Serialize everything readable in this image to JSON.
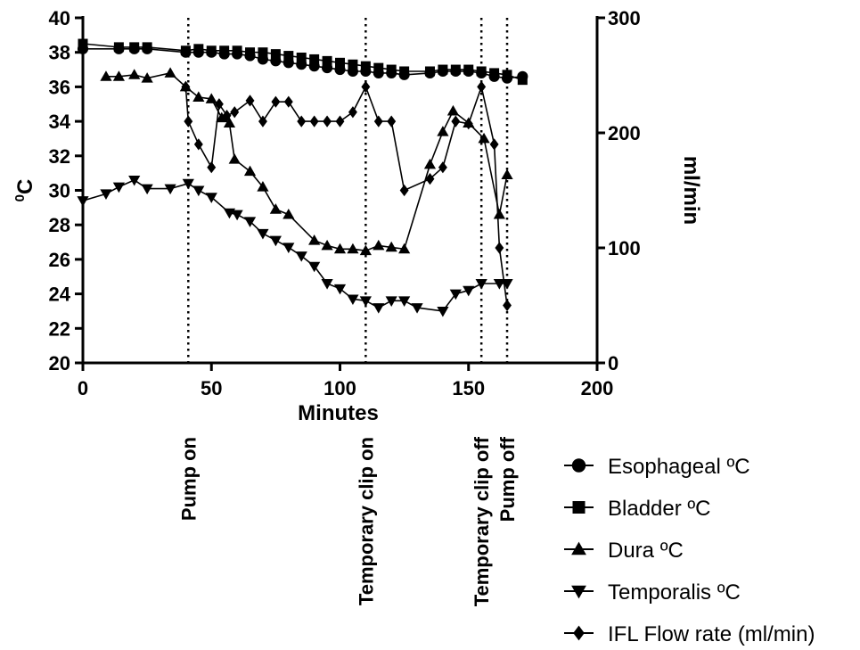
{
  "chart_data": {
    "type": "line",
    "xlabel": "Minutes",
    "ylabel_left": "0C",
    "ylabel_right": "ml/min",
    "xlim": [
      0,
      200
    ],
    "ylim_left": [
      20,
      40
    ],
    "ylim_right": [
      0,
      300
    ],
    "x_ticks": [
      0,
      50,
      100,
      150,
      200
    ],
    "y_ticks_left": [
      20,
      22,
      24,
      26,
      28,
      30,
      32,
      34,
      36,
      38,
      40
    ],
    "y_ticks_right": [
      0,
      100,
      200,
      300
    ],
    "grid": false,
    "legend_position": "bottom-right",
    "events": [
      {
        "x": 41,
        "label": "Pump on"
      },
      {
        "x": 110,
        "label": "Temporary clip on"
      },
      {
        "x": 155,
        "label": "Temporary clip off"
      },
      {
        "x": 165,
        "label": "Pump off"
      }
    ],
    "series": [
      {
        "name": "Esophageal ºC",
        "marker": "circle",
        "axis": "left",
        "x": [
          0,
          14,
          20,
          25,
          40,
          45,
          50,
          55,
          60,
          65,
          70,
          75,
          80,
          85,
          90,
          95,
          100,
          105,
          110,
          115,
          120,
          125,
          135,
          140,
          145,
          150,
          155,
          160,
          165,
          171
        ],
        "y": [
          38.2,
          38.2,
          38.2,
          38.2,
          38.0,
          38.0,
          38.0,
          37.9,
          37.9,
          37.8,
          37.6,
          37.5,
          37.4,
          37.3,
          37.2,
          37.1,
          37.0,
          36.9,
          36.9,
          36.8,
          36.8,
          36.7,
          36.8,
          36.9,
          36.9,
          36.9,
          36.8,
          36.6,
          36.5,
          36.6
        ]
      },
      {
        "name": "Bladder ºC",
        "marker": "square",
        "axis": "left",
        "x": [
          0,
          14,
          20,
          25,
          40,
          45,
          50,
          55,
          60,
          65,
          70,
          75,
          80,
          85,
          90,
          95,
          100,
          105,
          110,
          115,
          120,
          125,
          135,
          140,
          145,
          150,
          155,
          160,
          165,
          171
        ],
        "y": [
          38.5,
          38.3,
          38.3,
          38.3,
          38.1,
          38.2,
          38.1,
          38.1,
          38.1,
          38.0,
          38.0,
          37.9,
          37.8,
          37.7,
          37.6,
          37.5,
          37.4,
          37.3,
          37.2,
          37.1,
          37.0,
          36.9,
          36.9,
          37.0,
          37.0,
          37.0,
          36.9,
          36.8,
          36.7,
          36.4
        ]
      },
      {
        "name": "Dura ºC",
        "marker": "triangle-up",
        "axis": "left",
        "x": [
          9,
          14,
          20,
          25,
          34,
          40,
          45,
          50,
          54,
          57,
          59,
          65,
          70,
          75,
          80,
          90,
          95,
          100,
          105,
          110,
          115,
          120,
          125,
          135,
          140,
          144,
          150,
          156,
          162,
          165
        ],
        "y": [
          36.6,
          36.6,
          36.7,
          36.5,
          36.8,
          36.0,
          35.4,
          35.3,
          34.2,
          33.9,
          31.8,
          31.1,
          30.2,
          28.9,
          28.6,
          27.1,
          26.8,
          26.6,
          26.6,
          26.5,
          26.8,
          26.7,
          26.6,
          31.5,
          33.4,
          34.6,
          33.9,
          33.0,
          28.6,
          30.9
        ]
      },
      {
        "name": "Temporalis ºC",
        "marker": "triangle-down",
        "axis": "left",
        "x": [
          0,
          9,
          14,
          20,
          25,
          34,
          41,
          45,
          50,
          57,
          60,
          65,
          70,
          75,
          80,
          85,
          90,
          95,
          100,
          105,
          110,
          115,
          120,
          125,
          130,
          140,
          145,
          150,
          155,
          162,
          165
        ],
        "y": [
          29.4,
          29.8,
          30.2,
          30.6,
          30.1,
          30.1,
          30.4,
          30.0,
          29.6,
          28.7,
          28.6,
          28.2,
          27.5,
          27.1,
          26.7,
          26.2,
          25.6,
          24.6,
          24.3,
          23.7,
          23.6,
          23.2,
          23.6,
          23.6,
          23.2,
          23.0,
          24.0,
          24.2,
          24.6,
          24.6,
          24.6
        ]
      },
      {
        "name": "IFL Flow rate (ml/min)",
        "marker": "diamond",
        "axis": "right",
        "x": [
          40,
          41,
          45,
          50,
          53,
          56,
          59,
          65,
          70,
          75,
          80,
          85,
          90,
          95,
          100,
          105,
          110,
          115,
          120,
          125,
          135,
          140,
          145,
          150,
          155,
          160,
          162,
          165
        ],
        "y": [
          240,
          210,
          190,
          170,
          225,
          215,
          218,
          228,
          210,
          227,
          227,
          210,
          210,
          210,
          210,
          218,
          240,
          210,
          210,
          150,
          160,
          170,
          210,
          208,
          240,
          190,
          100,
          50
        ]
      }
    ]
  }
}
